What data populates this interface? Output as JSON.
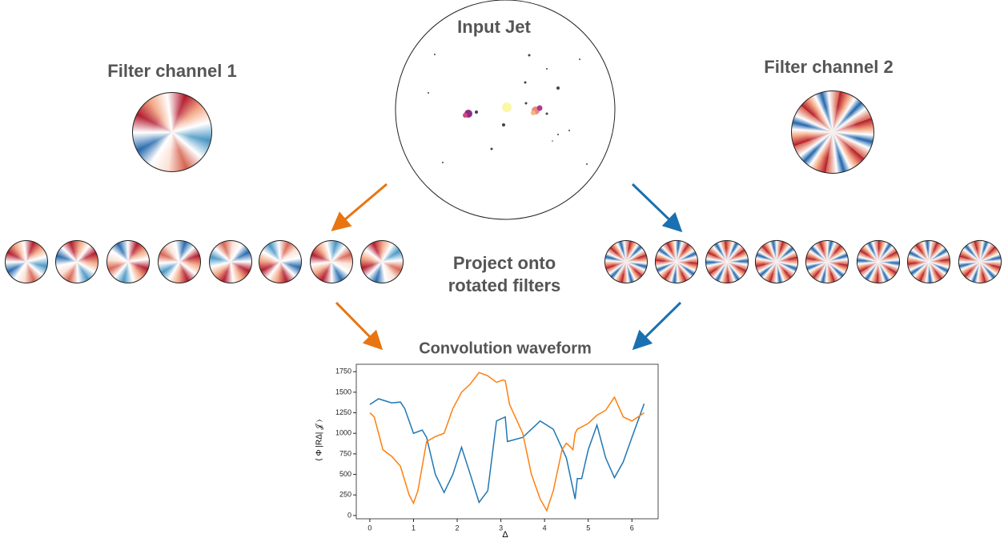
{
  "labels": {
    "input": "Input Jet",
    "filter1": "Filter channel 1",
    "filter2": "Filter channel 2",
    "project": [
      "Project onto",
      "rotated filters"
    ]
  },
  "chart_data": {
    "type": "line",
    "title": "Convolution waveform",
    "xlabel": "Δ",
    "ylabel": "⟨ Φ |RΔ| 𝒥 ⟩",
    "xlim": [
      -0.31,
      6.6
    ],
    "ylim": [
      -40,
      1840
    ],
    "xticks": [
      0,
      1,
      2,
      3,
      4,
      5,
      6
    ],
    "yticks": [
      0,
      250,
      500,
      750,
      1000,
      1250,
      1500,
      1750
    ],
    "series": [
      {
        "color": "#1f77b4",
        "x": [
          0,
          0.2,
          0.5,
          0.7,
          0.8,
          1.0,
          1.2,
          1.3,
          1.5,
          1.7,
          1.9,
          2.1,
          2.3,
          2.5,
          2.7,
          2.9,
          3.1,
          3.15,
          3.5,
          3.7,
          3.9,
          4.2,
          4.5,
          4.6,
          4.7,
          4.75,
          4.85,
          5.0,
          5.2,
          5.4,
          5.6,
          5.8,
          6.0,
          6.28
        ],
        "values": [
          1350,
          1420,
          1370,
          1380,
          1300,
          1000,
          1040,
          950,
          500,
          280,
          500,
          830,
          500,
          160,
          300,
          1150,
          1200,
          900,
          950,
          1050,
          1150,
          1050,
          700,
          450,
          200,
          450,
          450,
          800,
          1100,
          700,
          460,
          650,
          950,
          1360
        ]
      },
      {
        "color": "#ff7f0e",
        "x": [
          0,
          0.1,
          0.3,
          0.5,
          0.7,
          0.9,
          1.0,
          1.1,
          1.3,
          1.5,
          1.7,
          1.9,
          2.1,
          2.3,
          2.5,
          2.7,
          2.9,
          3.05,
          3.1,
          3.2,
          3.5,
          3.7,
          3.9,
          4.05,
          4.2,
          4.4,
          4.5,
          4.6,
          4.65,
          4.7,
          4.75,
          5.0,
          5.2,
          5.4,
          5.6,
          5.8,
          6.0,
          6.28
        ],
        "values": [
          1250,
          1200,
          800,
          720,
          600,
          250,
          150,
          300,
          900,
          960,
          1000,
          1300,
          1500,
          1600,
          1740,
          1700,
          1620,
          1650,
          1640,
          1350,
          1000,
          500,
          200,
          60,
          300,
          800,
          880,
          830,
          800,
          1000,
          1050,
          1120,
          1220,
          1280,
          1440,
          1200,
          1150,
          1250
        ]
      }
    ]
  }
}
